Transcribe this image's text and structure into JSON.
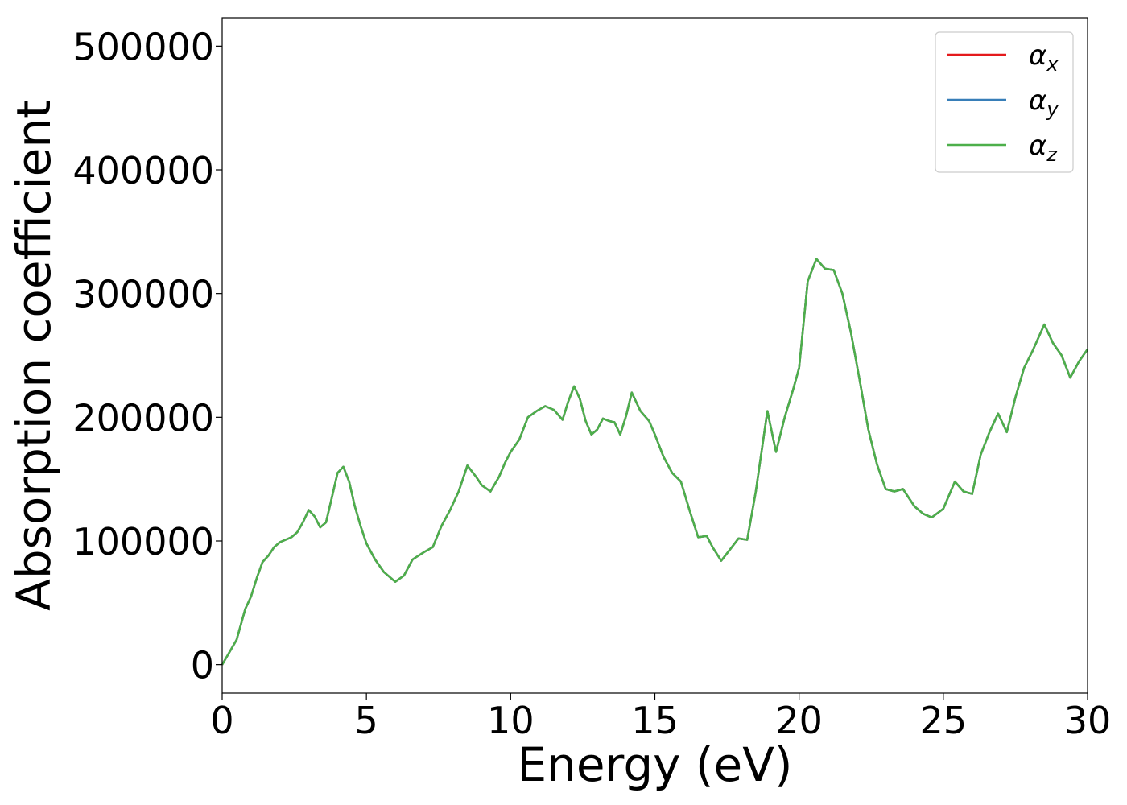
{
  "chart_data": {
    "type": "line",
    "title": "",
    "xlabel": "Energy (eV)",
    "ylabel": "Absorption coefficient",
    "xlim": [
      0,
      30
    ],
    "ylim": [
      -23000,
      523000
    ],
    "xticks": [
      0,
      5,
      10,
      15,
      20,
      25,
      30
    ],
    "yticks": [
      0,
      100000,
      200000,
      300000,
      400000,
      500000
    ],
    "grid": false,
    "legend_position": "top-right",
    "series": [
      {
        "name": "αx",
        "symbol": "α",
        "subscript": "x",
        "color": "#e41a1c",
        "x": [
          0,
          0.2,
          0.5,
          0.8,
          1.0,
          1.2,
          1.4,
          1.6,
          1.8,
          2.0,
          2.2,
          2.4,
          2.6,
          2.8,
          3.0,
          3.2,
          3.4,
          3.6,
          3.8,
          4.0,
          4.2,
          4.4,
          4.6,
          4.8,
          5.0,
          5.3,
          5.6,
          6.0,
          6.3,
          6.6,
          7.0,
          7.3,
          7.6,
          7.9,
          8.2,
          8.5,
          8.8,
          9.0,
          9.3,
          9.6,
          9.8,
          10.0,
          10.3,
          10.6,
          10.9,
          11.2,
          11.5,
          11.8,
          12.0,
          12.2,
          12.4,
          12.6,
          12.8,
          13.0,
          13.2,
          13.4,
          13.6,
          13.8,
          14.0,
          14.2,
          14.5,
          14.8,
          15.0,
          15.3,
          15.6,
          15.9,
          16.2,
          16.5,
          16.8,
          17.0,
          17.3,
          17.6,
          17.9,
          18.2,
          18.5,
          18.9,
          19.2,
          19.5,
          19.8,
          20.0,
          20.3,
          20.6,
          20.9,
          21.2,
          21.5,
          21.8,
          22.1,
          22.4,
          22.7,
          23.0,
          23.3,
          23.6,
          24.0,
          24.3,
          24.6,
          25.0,
          25.4,
          25.7,
          26.0,
          26.3,
          26.6,
          26.9,
          27.2,
          27.5,
          27.8,
          28.1,
          28.5,
          28.8,
          29.1,
          29.4,
          29.7,
          30.0
        ],
        "values": [
          0,
          8000,
          20000,
          45000,
          55000,
          70000,
          83000,
          88000,
          95000,
          99000,
          101000,
          103000,
          107000,
          115000,
          125000,
          120000,
          111000,
          115000,
          135000,
          155000,
          160000,
          148000,
          128000,
          112000,
          98000,
          85000,
          75000,
          67000,
          72000,
          85000,
          91000,
          95000,
          112000,
          125000,
          140000,
          161000,
          152000,
          145000,
          140000,
          152000,
          163000,
          172000,
          182000,
          200000,
          205000,
          209000,
          206000,
          198000,
          213000,
          225000,
          215000,
          197000,
          186000,
          190000,
          199000,
          197000,
          196000,
          186000,
          201000,
          220000,
          205000,
          197000,
          186000,
          168000,
          155000,
          148000,
          125000,
          103000,
          104000,
          95000,
          84000,
          93000,
          102000,
          101000,
          140000,
          205000,
          172000,
          200000,
          223000,
          240000,
          310000,
          328000,
          320000,
          319000,
          300000,
          268000,
          230000,
          190000,
          162000,
          142000,
          140000,
          142000,
          128000,
          122000,
          119000,
          126000,
          148000,
          140000,
          138000,
          170000,
          188000,
          203000,
          188000,
          216000,
          240000,
          254000,
          275000,
          260000,
          250000,
          232000,
          245000,
          255000
        ]
      },
      {
        "name": "αy",
        "symbol": "α",
        "subscript": "y",
        "color": "#377eb8",
        "x": [
          0,
          0.2,
          0.5,
          0.8,
          1.0,
          1.2,
          1.4,
          1.6,
          1.8,
          2.0,
          2.2,
          2.4,
          2.6,
          2.8,
          3.0,
          3.2,
          3.4,
          3.6,
          3.8,
          4.0,
          4.2,
          4.4,
          4.6,
          4.8,
          5.0,
          5.3,
          5.6,
          6.0,
          6.3,
          6.6,
          7.0,
          7.3,
          7.6,
          7.9,
          8.2,
          8.5,
          8.8,
          9.0,
          9.3,
          9.6,
          9.8,
          10.0,
          10.3,
          10.6,
          10.9,
          11.2,
          11.5,
          11.8,
          12.0,
          12.2,
          12.4,
          12.6,
          12.8,
          13.0,
          13.2,
          13.4,
          13.6,
          13.8,
          14.0,
          14.2,
          14.5,
          14.8,
          15.0,
          15.3,
          15.6,
          15.9,
          16.2,
          16.5,
          16.8,
          17.0,
          17.3,
          17.6,
          17.9,
          18.2,
          18.5,
          18.9,
          19.2,
          19.5,
          19.8,
          20.0,
          20.3,
          20.6,
          20.9,
          21.2,
          21.5,
          21.8,
          22.1,
          22.4,
          22.7,
          23.0,
          23.3,
          23.6,
          24.0,
          24.3,
          24.6,
          25.0,
          25.4,
          25.7,
          26.0,
          26.3,
          26.6,
          26.9,
          27.2,
          27.5,
          27.8,
          28.1,
          28.5,
          28.8,
          29.1,
          29.4,
          29.7,
          30.0
        ],
        "values": [
          0,
          8000,
          20000,
          45000,
          55000,
          70000,
          83000,
          88000,
          95000,
          99000,
          101000,
          103000,
          107000,
          115000,
          125000,
          120000,
          111000,
          115000,
          135000,
          155000,
          160000,
          148000,
          128000,
          112000,
          98000,
          85000,
          75000,
          67000,
          72000,
          85000,
          91000,
          95000,
          112000,
          125000,
          140000,
          161000,
          152000,
          145000,
          140000,
          152000,
          163000,
          172000,
          182000,
          200000,
          205000,
          209000,
          206000,
          198000,
          213000,
          225000,
          215000,
          197000,
          186000,
          190000,
          199000,
          197000,
          196000,
          186000,
          201000,
          220000,
          205000,
          197000,
          186000,
          168000,
          155000,
          148000,
          125000,
          103000,
          104000,
          95000,
          84000,
          93000,
          102000,
          101000,
          140000,
          205000,
          172000,
          200000,
          223000,
          240000,
          310000,
          328000,
          320000,
          319000,
          300000,
          268000,
          230000,
          190000,
          162000,
          142000,
          140000,
          142000,
          128000,
          122000,
          119000,
          126000,
          148000,
          140000,
          138000,
          170000,
          188000,
          203000,
          188000,
          216000,
          240000,
          254000,
          275000,
          260000,
          250000,
          232000,
          245000,
          255000
        ]
      },
      {
        "name": "αz",
        "symbol": "α",
        "subscript": "z",
        "color": "#4daf4a",
        "x": [
          0,
          0.2,
          0.5,
          0.8,
          1.0,
          1.2,
          1.4,
          1.6,
          1.8,
          2.0,
          2.2,
          2.4,
          2.6,
          2.8,
          3.0,
          3.2,
          3.4,
          3.6,
          3.8,
          4.0,
          4.2,
          4.4,
          4.6,
          4.8,
          5.0,
          5.3,
          5.6,
          6.0,
          6.3,
          6.6,
          7.0,
          7.3,
          7.6,
          7.9,
          8.2,
          8.5,
          8.8,
          9.0,
          9.3,
          9.6,
          9.8,
          10.0,
          10.3,
          10.6,
          10.9,
          11.2,
          11.5,
          11.8,
          12.0,
          12.2,
          12.4,
          12.6,
          12.8,
          13.0,
          13.2,
          13.4,
          13.6,
          13.8,
          14.0,
          14.2,
          14.5,
          14.8,
          15.0,
          15.3,
          15.6,
          15.9,
          16.2,
          16.5,
          16.8,
          17.0,
          17.3,
          17.6,
          17.9,
          18.2,
          18.5,
          18.9,
          19.2,
          19.5,
          19.8,
          20.0,
          20.3,
          20.6,
          20.9,
          21.2,
          21.5,
          21.8,
          22.1,
          22.4,
          22.7,
          23.0,
          23.3,
          23.6,
          24.0,
          24.3,
          24.6,
          25.0,
          25.4,
          25.7,
          26.0,
          26.3,
          26.6,
          26.9,
          27.2,
          27.5,
          27.8,
          28.1,
          28.5,
          28.8,
          29.1,
          29.4,
          29.7,
          30.0
        ],
        "values": [
          0,
          8000,
          20000,
          45000,
          55000,
          70000,
          83000,
          88000,
          95000,
          99000,
          101000,
          103000,
          107000,
          115000,
          125000,
          120000,
          111000,
          115000,
          135000,
          155000,
          160000,
          148000,
          128000,
          112000,
          98000,
          85000,
          75000,
          67000,
          72000,
          85000,
          91000,
          95000,
          112000,
          125000,
          140000,
          161000,
          152000,
          145000,
          140000,
          152000,
          163000,
          172000,
          182000,
          200000,
          205000,
          209000,
          206000,
          198000,
          213000,
          225000,
          215000,
          197000,
          186000,
          190000,
          199000,
          197000,
          196000,
          186000,
          201000,
          220000,
          205000,
          197000,
          186000,
          168000,
          155000,
          148000,
          125000,
          103000,
          104000,
          95000,
          84000,
          93000,
          102000,
          101000,
          140000,
          205000,
          172000,
          200000,
          223000,
          240000,
          310000,
          328000,
          320000,
          319000,
          300000,
          268000,
          230000,
          190000,
          162000,
          142000,
          140000,
          142000,
          128000,
          122000,
          119000,
          126000,
          148000,
          140000,
          138000,
          170000,
          188000,
          203000,
          188000,
          216000,
          240000,
          254000,
          275000,
          260000,
          250000,
          232000,
          245000,
          255000
        ]
      }
    ]
  }
}
